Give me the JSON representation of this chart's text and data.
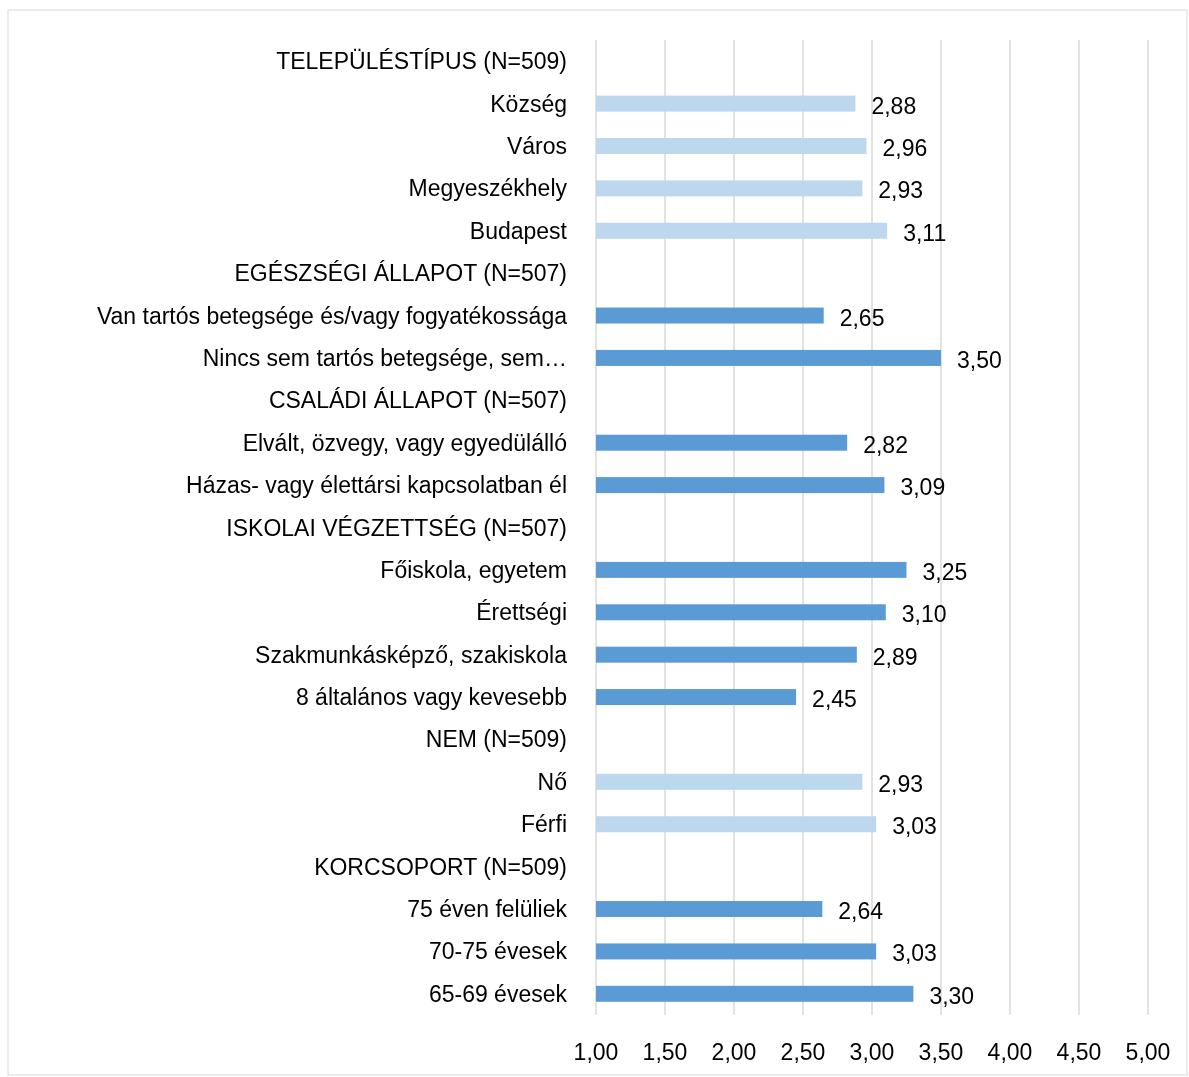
{
  "chart_data": {
    "type": "bar",
    "orientation": "horizontal",
    "categories": [
      "TELEPÜLÉSTÍPUS (N=509)",
      "Község",
      "Város",
      "Megyeszékhely",
      "Budapest",
      "EGÉSZSÉGI ÁLLAPOT (N=507)",
      "Van tartós betegsége és/vagy fogyatékossága",
      "Nincs sem tartós betegsége, sem…",
      "CSALÁDI ÁLLAPOT (N=507)",
      "Elvált, özvegy, vagy egyedülálló",
      "Házas- vagy élettársi kapcsolatban él",
      "ISKOLAI VÉGZETTSÉG (N=507)",
      "Főiskola, egyetem",
      "Érettségi",
      "Szakmunkásképző, szakiskola",
      "8 általános vagy kevesebb",
      "NEM (N=509)",
      "Nő",
      "Férfi",
      "KORCSOPORT (N=509)",
      "75 éven felüliek",
      "70-75 évesek",
      "65-69 évesek"
    ],
    "values": [
      null,
      2.88,
      2.96,
      2.93,
      3.11,
      null,
      2.65,
      3.5,
      null,
      2.82,
      3.09,
      null,
      3.25,
      3.1,
      2.89,
      2.45,
      null,
      2.93,
      3.03,
      null,
      2.64,
      3.03,
      3.3
    ],
    "value_labels": [
      null,
      "2,88",
      "2,96",
      "2,93",
      "3,11",
      null,
      "2,65",
      "3,50",
      null,
      "2,82",
      "3,09",
      null,
      "3,25",
      "3,10",
      "2,89",
      "2,45",
      null,
      "2,93",
      "3,03",
      null,
      "2,64",
      "3,03",
      "3,30"
    ],
    "colors": [
      null,
      "#bdd7ee",
      "#bdd7ee",
      "#bdd7ee",
      "#bdd7ee",
      null,
      "#5b9bd5",
      "#5b9bd5",
      null,
      "#5b9bd5",
      "#5b9bd5",
      null,
      "#5b9bd5",
      "#5b9bd5",
      "#5b9bd5",
      "#5b9bd5",
      null,
      "#bdd7ee",
      "#bdd7ee",
      null,
      "#5b9bd5",
      "#5b9bd5",
      "#5b9bd5"
    ],
    "xlim": [
      1,
      5
    ],
    "xticks": [
      {
        "value": 1,
        "label": "1,00"
      },
      {
        "value": 1.5,
        "label": "1,50"
      },
      {
        "value": 2,
        "label": "2,00"
      },
      {
        "value": 2.5,
        "label": "2,50"
      },
      {
        "value": 3,
        "label": "3,00"
      },
      {
        "value": 3.5,
        "label": "3,50"
      },
      {
        "value": 4,
        "label": "4,00"
      },
      {
        "value": 4.5,
        "label": "4,50"
      },
      {
        "value": 5,
        "label": "5,00"
      }
    ],
    "grid": "x"
  }
}
